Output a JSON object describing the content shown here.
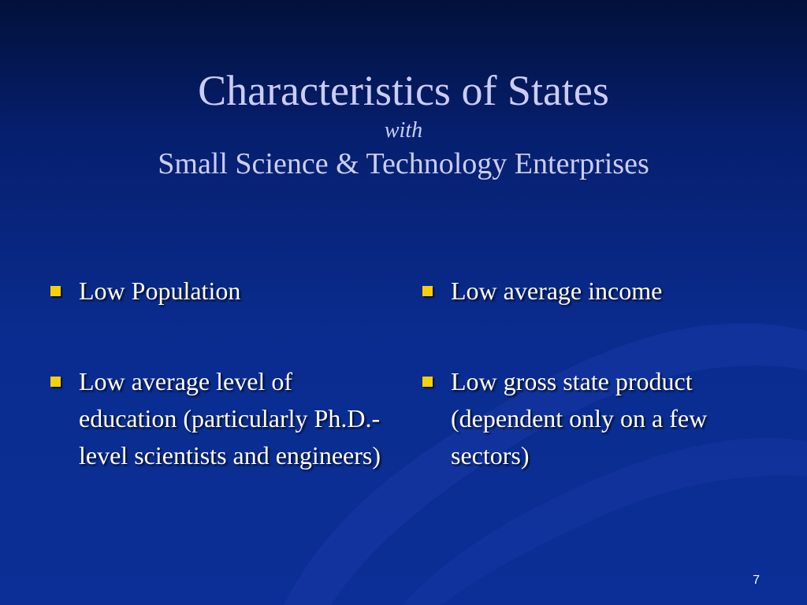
{
  "slide": {
    "title": "Characteristics of States",
    "connector": "with",
    "subtitle": "Small Science & Technology Enterprises",
    "page_number": "7"
  },
  "left_column": {
    "bullets": [
      "Low Population",
      "Low average level of education (particularly Ph.D.-level scientists and engineers)"
    ]
  },
  "right_column": {
    "bullets": [
      "Low average income",
      "Low gross state product (dependent only on a few sectors)"
    ]
  },
  "colors": {
    "background_top": "#02103a",
    "background_bottom": "#0b2f96",
    "title": "#cbcdf7",
    "bullet_marker": "#f5d10a",
    "bullet_text": "#ffffff"
  }
}
